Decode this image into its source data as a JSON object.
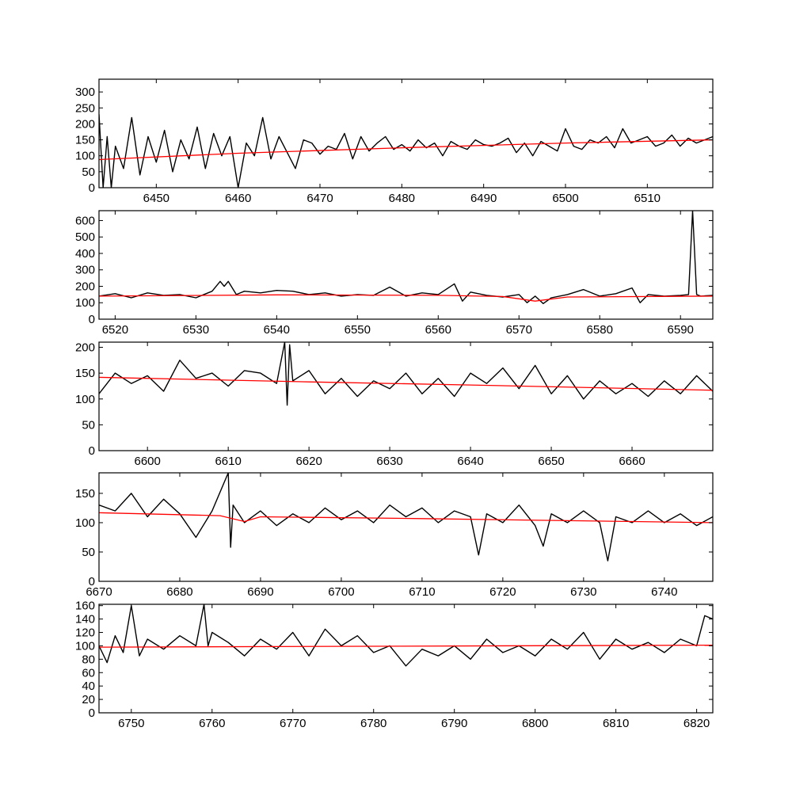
{
  "figure": {
    "background": "#ffffff"
  },
  "colors": {
    "spectrum": "#000000",
    "fit": "#ff0000",
    "axes": "#000000"
  },
  "chart_data": [
    {
      "type": "line",
      "xlim": [
        6443,
        6518
      ],
      "ylim": [
        0,
        340
      ],
      "xticks": [
        6450,
        6460,
        6470,
        6480,
        6490,
        6500,
        6510
      ],
      "yticks": [
        0,
        50,
        100,
        150,
        200,
        250,
        300
      ],
      "grid": false,
      "fit": {
        "x": [
          6443,
          6460,
          6480,
          6500,
          6518
        ],
        "y": [
          88,
          108,
          125,
          140,
          150
        ]
      },
      "spectrum": {
        "x": [
          6443,
          6443.5,
          6444,
          6444.5,
          6445,
          6446,
          6447,
          6448,
          6449,
          6450,
          6451,
          6452,
          6453,
          6454,
          6455,
          6456,
          6457,
          6458,
          6459,
          6460,
          6461,
          6462,
          6463,
          6464,
          6465,
          6466,
          6467,
          6468,
          6469,
          6470,
          6471,
          6472,
          6473,
          6474,
          6475,
          6476,
          6477,
          6478,
          6479,
          6480,
          6481,
          6482,
          6483,
          6484,
          6485,
          6486,
          6487,
          6488,
          6489,
          6490,
          6491,
          6492,
          6493,
          6494,
          6495,
          6496,
          6497,
          6498,
          6499,
          6500,
          6501,
          6502,
          6503,
          6504,
          6505,
          6506,
          6507,
          6508,
          6509,
          6510,
          6511,
          6512,
          6513,
          6514,
          6515,
          6516,
          6517,
          6518
        ],
        "y": [
          230,
          0,
          160,
          0,
          130,
          60,
          220,
          40,
          160,
          80,
          180,
          50,
          150,
          90,
          190,
          60,
          170,
          100,
          160,
          0,
          140,
          100,
          220,
          90,
          160,
          110,
          60,
          150,
          140,
          105,
          130,
          120,
          170,
          90,
          160,
          115,
          140,
          160,
          120,
          135,
          115,
          150,
          125,
          140,
          100,
          145,
          130,
          120,
          150,
          135,
          130,
          140,
          155,
          110,
          140,
          100,
          145,
          130,
          115,
          185,
          130,
          120,
          150,
          140,
          160,
          125,
          185,
          140,
          150,
          160,
          130,
          140,
          165,
          130,
          155,
          140,
          150,
          160
        ]
      }
    },
    {
      "type": "line",
      "xlim": [
        6518,
        6594
      ],
      "ylim": [
        0,
        660
      ],
      "xticks": [
        6520,
        6530,
        6540,
        6550,
        6560,
        6570,
        6580,
        6590
      ],
      "yticks": [
        0,
        100,
        200,
        300,
        400,
        500,
        600
      ],
      "grid": false,
      "fit": {
        "x": [
          6518,
          6540,
          6560,
          6568,
          6572,
          6576,
          6594
        ],
        "y": [
          140,
          148,
          145,
          138,
          110,
          135,
          140
        ]
      },
      "spectrum": {
        "x": [
          6518,
          6520,
          6522,
          6524,
          6526,
          6528,
          6530,
          6532,
          6533,
          6533.5,
          6534,
          6535,
          6536,
          6538,
          6540,
          6542,
          6544,
          6546,
          6548,
          6550,
          6552,
          6554,
          6556,
          6558,
          6560,
          6562,
          6563,
          6564,
          6566,
          6568,
          6570,
          6571,
          6572,
          6573,
          6574,
          6576,
          6578,
          6580,
          6582,
          6584,
          6585,
          6586,
          6588,
          6590,
          6591,
          6591.5,
          6592,
          6592.5,
          6594
        ],
        "y": [
          140,
          155,
          130,
          160,
          145,
          150,
          130,
          170,
          230,
          200,
          230,
          150,
          170,
          160,
          175,
          170,
          150,
          160,
          140,
          150,
          145,
          195,
          140,
          160,
          150,
          215,
          110,
          165,
          145,
          135,
          150,
          100,
          140,
          95,
          130,
          150,
          180,
          140,
          155,
          190,
          100,
          150,
          140,
          145,
          150,
          660,
          150,
          140,
          145
        ]
      }
    },
    {
      "type": "line",
      "xlim": [
        6594,
        6670
      ],
      "ylim": [
        0,
        210
      ],
      "xticks": [
        6600,
        6610,
        6620,
        6630,
        6640,
        6650,
        6660
      ],
      "yticks": [
        0,
        50,
        100,
        150,
        200
      ],
      "grid": false,
      "fit": {
        "x": [
          6594,
          6620,
          6640,
          6670
        ],
        "y": [
          142,
          133,
          127,
          117
        ]
      },
      "spectrum": {
        "x": [
          6594,
          6596,
          6598,
          6600,
          6602,
          6604,
          6606,
          6608,
          6610,
          6612,
          6614,
          6616,
          6617,
          6617.3,
          6617.6,
          6618,
          6620,
          6622,
          6624,
          6626,
          6628,
          6630,
          6632,
          6634,
          6636,
          6638,
          6640,
          6642,
          6644,
          6646,
          6648,
          6650,
          6652,
          6654,
          6656,
          6658,
          6660,
          6662,
          6664,
          6666,
          6668,
          6670
        ],
        "y": [
          110,
          150,
          130,
          145,
          115,
          175,
          140,
          150,
          125,
          155,
          150,
          130,
          210,
          88,
          205,
          135,
          155,
          110,
          140,
          105,
          135,
          120,
          150,
          110,
          140,
          105,
          150,
          130,
          160,
          120,
          165,
          110,
          145,
          100,
          135,
          110,
          130,
          105,
          135,
          110,
          145,
          115
        ]
      }
    },
    {
      "type": "line",
      "xlim": [
        6670,
        6746
      ],
      "ylim": [
        0,
        185
      ],
      "xticks": [
        6670,
        6680,
        6690,
        6700,
        6710,
        6720,
        6730,
        6740
      ],
      "yticks": [
        0,
        50,
        100,
        150
      ],
      "grid": false,
      "fit": {
        "x": [
          6670,
          6685,
          6688,
          6690,
          6710,
          6746
        ],
        "y": [
          117,
          112,
          102,
          110,
          107,
          100
        ]
      },
      "spectrum": {
        "x": [
          6670,
          6672,
          6674,
          6676,
          6678,
          6680,
          6682,
          6684,
          6686,
          6686.3,
          6686.6,
          6688,
          6690,
          6692,
          6694,
          6696,
          6698,
          6700,
          6702,
          6704,
          6706,
          6708,
          6710,
          6712,
          6714,
          6716,
          6717,
          6718,
          6720,
          6722,
          6724,
          6725,
          6726,
          6728,
          6730,
          6732,
          6733,
          6734,
          6736,
          6738,
          6740,
          6742,
          6744,
          6746
        ],
        "y": [
          130,
          120,
          150,
          110,
          140,
          115,
          75,
          120,
          185,
          58,
          130,
          100,
          120,
          95,
          115,
          100,
          125,
          105,
          120,
          100,
          130,
          110,
          125,
          100,
          120,
          110,
          45,
          115,
          100,
          130,
          95,
          60,
          115,
          100,
          120,
          100,
          35,
          110,
          100,
          120,
          100,
          115,
          95,
          110
        ]
      }
    },
    {
      "type": "line",
      "xlim": [
        6746,
        6822
      ],
      "ylim": [
        0,
        162
      ],
      "xticks": [
        6750,
        6760,
        6770,
        6780,
        6790,
        6800,
        6810,
        6820
      ],
      "yticks": [
        0,
        20,
        40,
        60,
        80,
        100,
        120,
        140,
        160
      ],
      "grid": false,
      "fit": {
        "x": [
          6746,
          6822
        ],
        "y": [
          98,
          101
        ]
      },
      "spectrum": {
        "x": [
          6746,
          6747,
          6748,
          6749,
          6750,
          6751,
          6752,
          6754,
          6756,
          6758,
          6759,
          6759.5,
          6760,
          6762,
          6764,
          6766,
          6768,
          6770,
          6772,
          6774,
          6776,
          6778,
          6780,
          6782,
          6784,
          6786,
          6788,
          6790,
          6792,
          6794,
          6796,
          6798,
          6800,
          6802,
          6804,
          6806,
          6808,
          6810,
          6812,
          6814,
          6816,
          6818,
          6820,
          6821,
          6822
        ],
        "y": [
          100,
          75,
          115,
          90,
          160,
          85,
          110,
          95,
          115,
          100,
          162,
          100,
          120,
          105,
          85,
          110,
          95,
          120,
          85,
          125,
          100,
          115,
          90,
          100,
          70,
          95,
          85,
          100,
          80,
          110,
          90,
          100,
          85,
          110,
          95,
          120,
          80,
          110,
          95,
          105,
          90,
          110,
          100,
          145,
          140
        ]
      }
    }
  ]
}
